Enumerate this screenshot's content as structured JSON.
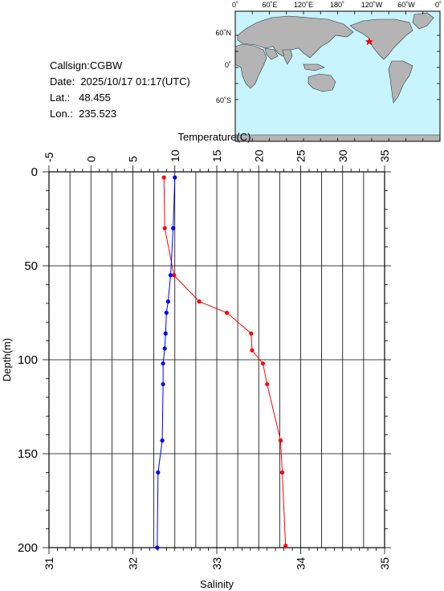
{
  "info": {
    "callsign": "Callsign:CGBW",
    "date": "Date:  2025/10/17 01:17(UTC)",
    "lat": "Lat.:   48.455",
    "lon": "Lon.:  235.523"
  },
  "map": {
    "lon_labels": [
      "0˚",
      "60˚E",
      "120˚E",
      "180˚",
      "120˚W",
      "60˚W",
      "0˚"
    ],
    "lat_labels": [
      "60˚N",
      "0˚",
      "60˚S"
    ],
    "station": {
      "lon": 235.523,
      "lat": 48.455
    },
    "colors": {
      "ocean": "#c8f4ff",
      "land": "#b4b4b4",
      "marker": "#ff0000"
    }
  },
  "chart_data": {
    "type": "line",
    "temperature_axis": {
      "label": "Temperature(C)",
      "range": [
        -5,
        35
      ],
      "ticks": [
        "-5",
        "0",
        "5",
        "10",
        "15",
        "20",
        "25",
        "30",
        "35"
      ]
    },
    "salinity_axis": {
      "label": "Salinity",
      "range": [
        31,
        35
      ],
      "ticks": [
        "31",
        "32",
        "33",
        "34",
        "35"
      ]
    },
    "depth_axis": {
      "label": "Depth(m)",
      "range": [
        0,
        200
      ],
      "ticks": [
        "0",
        "50",
        "100",
        "150",
        "200"
      ]
    },
    "grid": true,
    "series": [
      {
        "quantity": "temperature",
        "color": "#ff0000",
        "points": [
          {
            "depth": 3,
            "value": 8.7
          },
          {
            "depth": 30,
            "value": 8.8
          },
          {
            "depth": 55,
            "value": 9.9
          },
          {
            "depth": 69,
            "value": 12.9
          },
          {
            "depth": 75,
            "value": 16.2
          },
          {
            "depth": 86,
            "value": 19.1
          },
          {
            "depth": 95,
            "value": 19.2
          },
          {
            "depth": 102,
            "value": 20.5
          },
          {
            "depth": 113,
            "value": 21.0
          },
          {
            "depth": 143,
            "value": 22.6
          },
          {
            "depth": 160,
            "value": 22.8
          },
          {
            "depth": 199,
            "value": 23.2
          }
        ]
      },
      {
        "quantity": "salinity",
        "color": "#0000ff",
        "points": [
          {
            "depth": 3,
            "value": 32.5
          },
          {
            "depth": 30,
            "value": 32.48
          },
          {
            "depth": 55,
            "value": 32.45
          },
          {
            "depth": 69,
            "value": 32.42
          },
          {
            "depth": 75,
            "value": 32.4
          },
          {
            "depth": 86,
            "value": 32.39
          },
          {
            "depth": 94,
            "value": 32.38
          },
          {
            "depth": 102,
            "value": 32.36
          },
          {
            "depth": 113,
            "value": 32.36
          },
          {
            "depth": 143,
            "value": 32.35
          },
          {
            "depth": 160,
            "value": 32.3
          },
          {
            "depth": 200,
            "value": 32.29
          }
        ]
      }
    ]
  }
}
